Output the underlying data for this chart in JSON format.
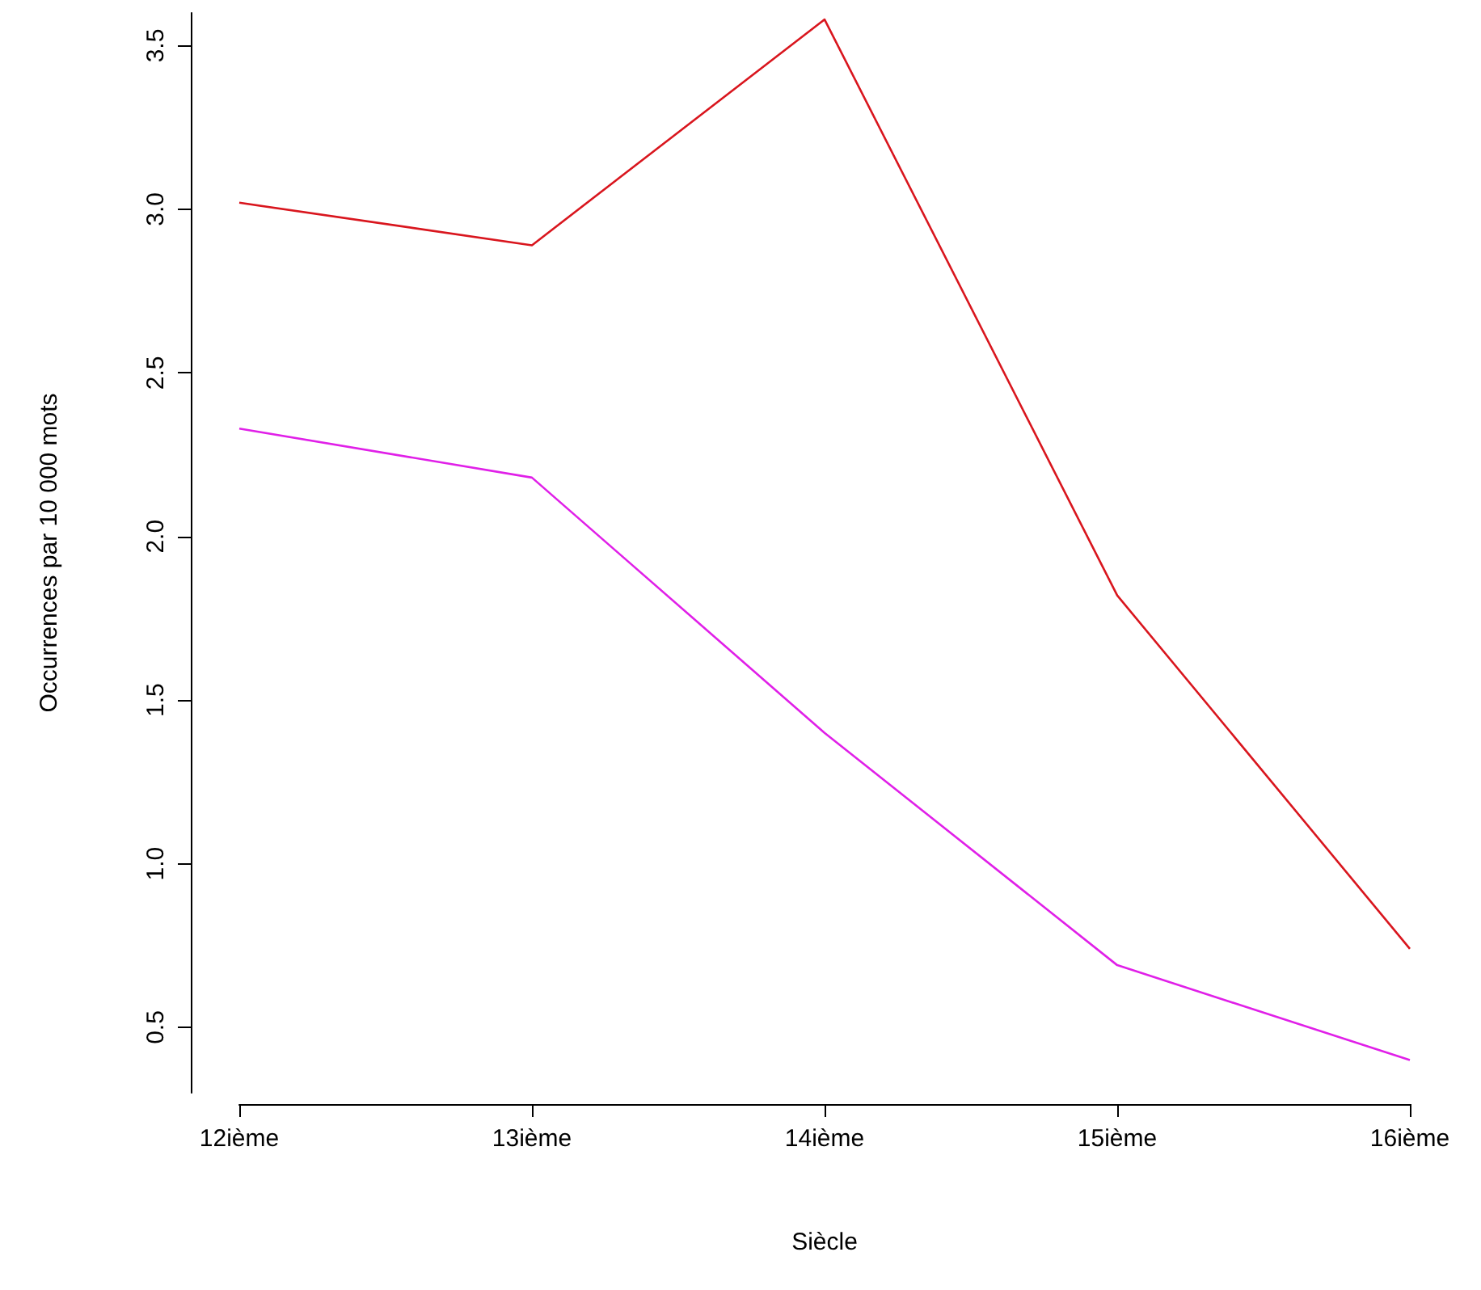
{
  "chart_data": {
    "type": "line",
    "xlabel": "Siècle",
    "ylabel": "Occurrences par 10 000 mots",
    "categories": [
      "12ième",
      "13ième",
      "14ième",
      "15ième",
      "16ième"
    ],
    "series": [
      {
        "color": "#d9161e",
        "values": [
          3.02,
          2.89,
          3.58,
          1.82,
          0.74
        ]
      },
      {
        "color": "#e020e8",
        "values": [
          2.33,
          2.18,
          1.4,
          0.69,
          0.4
        ]
      }
    ],
    "ylim": [
      0.3,
      3.6
    ],
    "yticks": [
      0.5,
      {
        "value": 1,
        "label": "1.0"
      },
      1.5,
      {
        "value": 2,
        "label": "2.0"
      },
      2.5,
      {
        "value": 3,
        "label": "3.0"
      },
      3.5
    ],
    "grid": false,
    "marker": "none",
    "line_style": "solid"
  }
}
